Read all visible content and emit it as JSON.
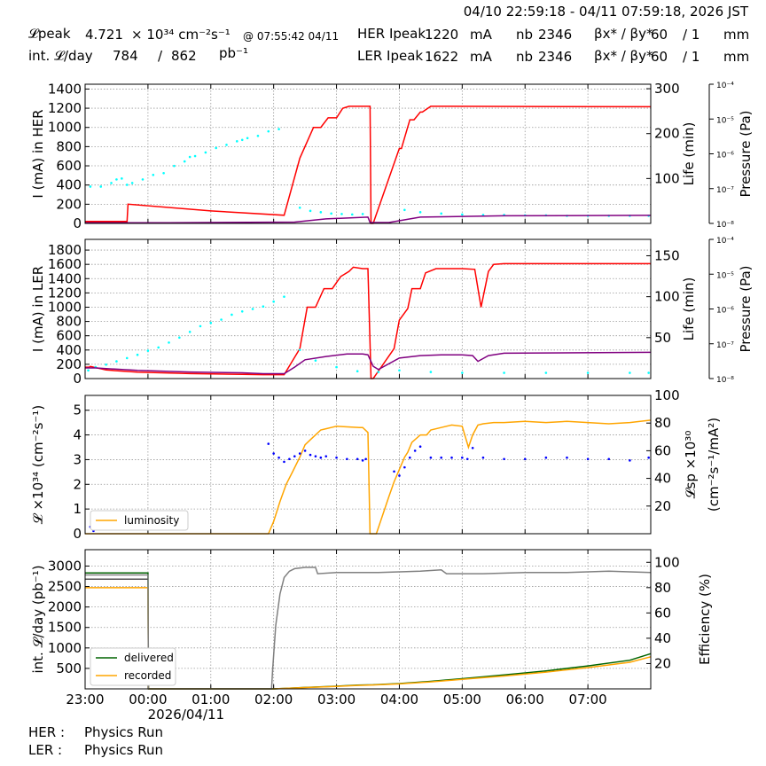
{
  "header": {
    "time_range": "04/10 22:59:18 - 04/11 07:59:18, 2026 JST",
    "lpeak_label": "𝓛peak",
    "lpeak_value": "4.721",
    "lpeak_unit": "× 10³⁴ cm⁻²s⁻¹",
    "lpeak_time": "@ 07:55:42 04/11",
    "intl_label": "int. 𝓛/day",
    "intl_value1": "784",
    "intl_slash": "/",
    "intl_value2": "862",
    "intl_unit": "pb⁻¹",
    "her_label": "HER Ipeak",
    "her_value": "1220",
    "her_unit": "mA",
    "her_nb_label": "nb",
    "her_nb": "2346",
    "her_beta_label": "βx* / βy*",
    "her_beta_x": "60",
    "her_beta_y": "/ 1",
    "her_beta_unit": "mm",
    "ler_label": "LER Ipeak",
    "ler_value": "1622",
    "ler_unit": "mA",
    "ler_nb_label": "nb",
    "ler_nb": "2346",
    "ler_beta_label": "βx* / βy*",
    "ler_beta_x": "60",
    "ler_beta_y": "/ 1",
    "ler_beta_unit": "mm"
  },
  "footer": {
    "her_label": "HER :",
    "her_status": "Physics Run",
    "ler_label": "LER :",
    "ler_status": "Physics Run"
  },
  "chart_data": [
    {
      "type": "line",
      "panel": "HER",
      "ylabel": "I (mA) in HER",
      "ylabel_right": "Life (min)",
      "ylabel_right2": "Pressure (Pa)",
      "ylim": [
        0,
        1450
      ],
      "yticks": [
        0,
        200,
        400,
        600,
        800,
        1000,
        1200,
        1400
      ],
      "ylim_right": [
        0,
        310
      ],
      "yticks_right": [
        100,
        200,
        300
      ],
      "pressure_ticks": [
        "10⁻⁸",
        "10⁻⁷",
        "10⁻⁶",
        "10⁻⁵",
        "10⁻⁴"
      ],
      "xlim": [
        0,
        540
      ],
      "grid": true,
      "series": [
        {
          "role": "current",
          "color": "#ff0000",
          "axis": "left",
          "x": [
            0,
            40,
            41,
            120,
            190,
            205,
            218,
            225,
            232,
            240,
            246,
            252,
            263,
            272,
            273,
            275,
            300,
            302,
            310,
            314,
            320,
            322,
            330,
            338,
            540
          ],
          "y": [
            20,
            20,
            200,
            130,
            85,
            680,
            1000,
            1000,
            1100,
            1100,
            1200,
            1220,
            1220,
            1220,
            0,
            0,
            780,
            780,
            1080,
            1080,
            1160,
            1160,
            1220,
            1220,
            1215
          ]
        },
        {
          "role": "lifetime",
          "color": "#00ffff",
          "axis": "right",
          "style": "scatter",
          "x": [
            5,
            15,
            25,
            30,
            35,
            40,
            45,
            55,
            65,
            75,
            85,
            95,
            100,
            105,
            115,
            125,
            135,
            145,
            150,
            155,
            165,
            175,
            185,
            205,
            215,
            225,
            235,
            245,
            255,
            265,
            305,
            320,
            340,
            360,
            380,
            400,
            420,
            440,
            460,
            480,
            500,
            520,
            538
          ],
          "y": [
            82,
            82,
            90,
            98,
            100,
            86,
            90,
            98,
            108,
            112,
            128,
            138,
            148,
            150,
            158,
            168,
            175,
            183,
            186,
            190,
            195,
            205,
            210,
            35,
            28,
            25,
            22,
            21,
            20,
            21,
            30,
            25,
            22,
            20,
            19,
            19,
            18,
            18,
            17,
            17,
            17,
            17,
            17
          ]
        },
        {
          "role": "pressure",
          "color": "#800080",
          "axis": "right",
          "x": [
            0,
            80,
            200,
            230,
            270,
            272,
            290,
            320,
            400,
            540
          ],
          "y": [
            1.5,
            1.5,
            3,
            10,
            14,
            2,
            2,
            14,
            17,
            18
          ]
        }
      ]
    },
    {
      "type": "line",
      "panel": "LER",
      "ylabel": "I (mA) in LER",
      "ylabel_right": "Life (min)",
      "ylabel_right2": "Pressure (Pa)",
      "ylim": [
        0,
        1950
      ],
      "yticks": [
        0,
        200,
        400,
        600,
        800,
        1000,
        1200,
        1400,
        1600,
        1800
      ],
      "ylim_right": [
        0,
        170
      ],
      "yticks_right": [
        50,
        100,
        150
      ],
      "pressure_ticks": [
        "10⁻⁸",
        "10⁻⁷",
        "10⁻⁶",
        "10⁻⁵",
        "10⁻⁴"
      ],
      "xlim": [
        0,
        540
      ],
      "grid": true,
      "series": [
        {
          "role": "current",
          "color": "#ff0000",
          "axis": "left",
          "x": [
            0,
            4,
            5,
            20,
            50,
            100,
            150,
            170,
            190,
            205,
            212,
            220,
            228,
            236,
            244,
            252,
            256,
            265,
            270,
            273,
            275,
            295,
            300,
            308,
            312,
            320,
            325,
            335,
            345,
            360,
            372,
            378,
            385,
            390,
            400,
            540
          ],
          "y": [
            160,
            160,
            170,
            120,
            90,
            70,
            60,
            55,
            55,
            420,
            1000,
            1000,
            1260,
            1260,
            1430,
            1500,
            1560,
            1540,
            1540,
            0,
            0,
            420,
            820,
            980,
            1260,
            1260,
            1480,
            1540,
            1540,
            1540,
            1530,
            1000,
            1500,
            1600,
            1610,
            1610
          ]
        },
        {
          "role": "lifetime",
          "color": "#00ffff",
          "axis": "right",
          "style": "scatter",
          "x": [
            3,
            10,
            20,
            30,
            40,
            50,
            60,
            70,
            80,
            90,
            100,
            110,
            120,
            130,
            140,
            150,
            160,
            170,
            180,
            190,
            205,
            220,
            240,
            260,
            280,
            300,
            330,
            360,
            400,
            440,
            480,
            520,
            538
          ],
          "y": [
            10,
            14,
            17,
            21,
            25,
            29,
            34,
            38,
            44,
            50,
            57,
            64,
            68,
            72,
            78,
            82,
            85,
            88,
            94,
            100,
            35,
            22,
            14,
            9,
            8,
            10,
            8,
            7,
            7,
            7,
            7,
            7,
            7
          ]
        },
        {
          "role": "pressure",
          "color": "#800080",
          "axis": "right",
          "x": [
            0,
            10,
            50,
            100,
            150,
            170,
            190,
            200,
            210,
            230,
            250,
            265,
            270,
            275,
            280,
            300,
            320,
            340,
            360,
            370,
            375,
            385,
            400,
            540
          ],
          "y": [
            13,
            13,
            10,
            8,
            7,
            6,
            6,
            14,
            23,
            27,
            30,
            30,
            29,
            15,
            11,
            25,
            28,
            29,
            29,
            28,
            21,
            28,
            31,
            32
          ]
        }
      ]
    },
    {
      "type": "line",
      "panel": "luminosity",
      "ylabel": "𝓛 ×10³⁴ (cm⁻²s⁻¹)",
      "ylabel_right": "𝓛sp ×10³⁰",
      "ylabel_right_sub": "(cm⁻²s⁻¹/mA²)",
      "ylim": [
        0,
        5.6
      ],
      "yticks": [
        0,
        1,
        2,
        3,
        4,
        5
      ],
      "ylim_right": [
        0,
        100
      ],
      "yticks_right": [
        20,
        40,
        60,
        80,
        100
      ],
      "xlim": [
        0,
        540
      ],
      "legend": {
        "entries": [
          "luminosity"
        ],
        "location": "lower left"
      },
      "grid": true,
      "series": [
        {
          "name": "luminosity",
          "color": "#ffa500",
          "axis": "left",
          "x": [
            0,
            175,
            180,
            186,
            192,
            198,
            205,
            210,
            215,
            220,
            225,
            230,
            235,
            240,
            262,
            265,
            270,
            272,
            278,
            282,
            290,
            295,
            300,
            305,
            308,
            312,
            320,
            326,
            330,
            340,
            350,
            360,
            366,
            370,
            375,
            380,
            390,
            400,
            420,
            440,
            460,
            480,
            500,
            520,
            540
          ],
          "y": [
            0,
            0,
            0.5,
            1.3,
            2,
            2.5,
            3.1,
            3.6,
            3.8,
            4.0,
            4.2,
            4.25,
            4.3,
            4.35,
            4.3,
            4.3,
            4.1,
            0,
            0,
            0.5,
            1.5,
            2.1,
            2.6,
            3.1,
            3.3,
            3.7,
            4.0,
            4.0,
            4.2,
            4.3,
            4.4,
            4.35,
            3.5,
            4.0,
            4.4,
            4.45,
            4.5,
            4.5,
            4.55,
            4.5,
            4.55,
            4.5,
            4.45,
            4.5,
            4.6
          ]
        },
        {
          "role": "specific luminosity",
          "color": "#0000ff",
          "axis": "right",
          "style": "scatter",
          "x": [
            5,
            8,
            175,
            180,
            185,
            190,
            195,
            200,
            205,
            210,
            215,
            220,
            225,
            230,
            240,
            250,
            260,
            265,
            268,
            295,
            300,
            305,
            310,
            315,
            320,
            330,
            340,
            350,
            360,
            365,
            370,
            380,
            400,
            420,
            440,
            460,
            480,
            500,
            520,
            538
          ],
          "y": [
            5,
            2,
            65,
            58,
            55,
            52,
            54,
            56,
            58,
            60,
            57,
            56,
            55,
            56,
            55,
            54,
            54,
            53,
            54,
            45,
            42,
            48,
            55,
            60,
            63,
            55,
            55,
            55,
            55,
            54,
            62,
            55,
            54,
            54,
            55,
            55,
            54,
            54,
            53,
            55
          ]
        }
      ]
    },
    {
      "type": "line",
      "panel": "integrated",
      "ylabel": "int. 𝓛/day (pb⁻¹)",
      "ylabel_right": "Efficiency (%)",
      "ylim": [
        0,
        3400
      ],
      "yticks": [
        500,
        1000,
        1500,
        2000,
        2500,
        3000
      ],
      "ylim_right": [
        0,
        110
      ],
      "yticks_right": [
        20,
        40,
        60,
        80,
        100
      ],
      "xlim": [
        0,
        540
      ],
      "xticks": [
        0,
        60,
        120,
        180,
        240,
        300,
        360,
        420,
        480
      ],
      "xticklabels": [
        "23:00",
        "00:00",
        "01:00",
        "02:00",
        "03:00",
        "04:00",
        "05:00",
        "06:00",
        "07:00"
      ],
      "xlabel_date": "2026/04/11",
      "legend": {
        "entries": [
          "delivered",
          "recorded"
        ],
        "location": "lower left"
      },
      "grid": true,
      "series": [
        {
          "name": "delivered",
          "color": "#006400",
          "axis": "left",
          "x": [
            0,
            60,
            60.5,
            180,
            190,
            210,
            240,
            260,
            275,
            300,
            330,
            360,
            400,
            440,
            480,
            520,
            540
          ],
          "y": [
            2830,
            2830,
            0,
            0,
            10,
            35,
            65,
            90,
            100,
            130,
            185,
            250,
            340,
            440,
            560,
            700,
            860
          ]
        },
        {
          "name": "recorded",
          "color": "#ffa500",
          "axis": "left",
          "x": [
            0,
            60,
            60.5,
            180,
            190,
            210,
            240,
            260,
            275,
            300,
            330,
            360,
            400,
            440,
            480,
            520,
            540
          ],
          "y": [
            2470,
            2470,
            0,
            0,
            10,
            32,
            60,
            85,
            95,
            122,
            172,
            232,
            315,
            410,
            520,
            650,
            784
          ]
        },
        {
          "role": "efficiency",
          "color": "#808080",
          "axis": "right",
          "x": [
            0,
            60,
            60.5,
            178,
            179,
            182,
            186,
            190,
            195,
            200,
            210,
            220,
            222,
            240,
            280,
            320,
            340,
            345,
            380,
            420,
            460,
            500,
            540
          ],
          "y": [
            90,
            90,
            0,
            0,
            15,
            50,
            75,
            88,
            93,
            95,
            96,
            96,
            91,
            92,
            92,
            93,
            94,
            91,
            91,
            92,
            92,
            93,
            92
          ]
        },
        {
          "role": "reference",
          "color": "#505050",
          "axis": "left",
          "x": [
            0,
            60
          ],
          "y": [
            2680,
            2680
          ]
        }
      ]
    }
  ]
}
